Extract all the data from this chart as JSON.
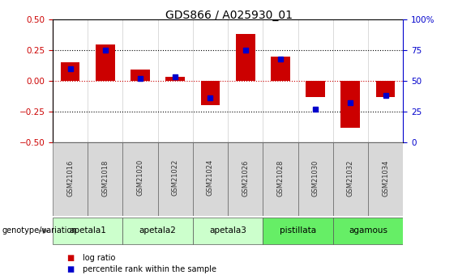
{
  "title": "GDS866 / A025930_01",
  "samples": [
    "GSM21016",
    "GSM21018",
    "GSM21020",
    "GSM21022",
    "GSM21024",
    "GSM21026",
    "GSM21028",
    "GSM21030",
    "GSM21032",
    "GSM21034"
  ],
  "log_ratio": [
    0.15,
    0.3,
    0.09,
    0.03,
    -0.2,
    0.38,
    0.2,
    -0.13,
    -0.38,
    -0.13
  ],
  "percentile_rank": [
    60,
    75,
    52,
    53,
    36,
    75,
    68,
    27,
    32,
    38
  ],
  "groups": [
    {
      "name": "apetala1",
      "samples": [
        0,
        1
      ],
      "color": "#ccffcc"
    },
    {
      "name": "apetala2",
      "samples": [
        2,
        3
      ],
      "color": "#ccffcc"
    },
    {
      "name": "apetala3",
      "samples": [
        4,
        5
      ],
      "color": "#ccffcc"
    },
    {
      "name": "pistillata",
      "samples": [
        6,
        7
      ],
      "color": "#66ee66"
    },
    {
      "name": "agamous",
      "samples": [
        8,
        9
      ],
      "color": "#66ee66"
    }
  ],
  "bar_color": "#cc0000",
  "dot_color": "#0000cc",
  "sample_cell_color": "#d8d8d8",
  "ylim_left": [
    -0.5,
    0.5
  ],
  "ylim_right": [
    0,
    100
  ],
  "yticks_left": [
    -0.5,
    -0.25,
    0.0,
    0.25,
    0.5
  ],
  "yticks_right": [
    0,
    25,
    50,
    75,
    100
  ],
  "dotted_lines": [
    -0.25,
    0.0,
    0.25
  ],
  "legend_items": [
    {
      "label": "log ratio",
      "color": "#cc0000"
    },
    {
      "label": "percentile rank within the sample",
      "color": "#0000cc"
    }
  ],
  "genotype_label": "genotype/variation",
  "bar_width": 0.55,
  "dot_size": 5
}
